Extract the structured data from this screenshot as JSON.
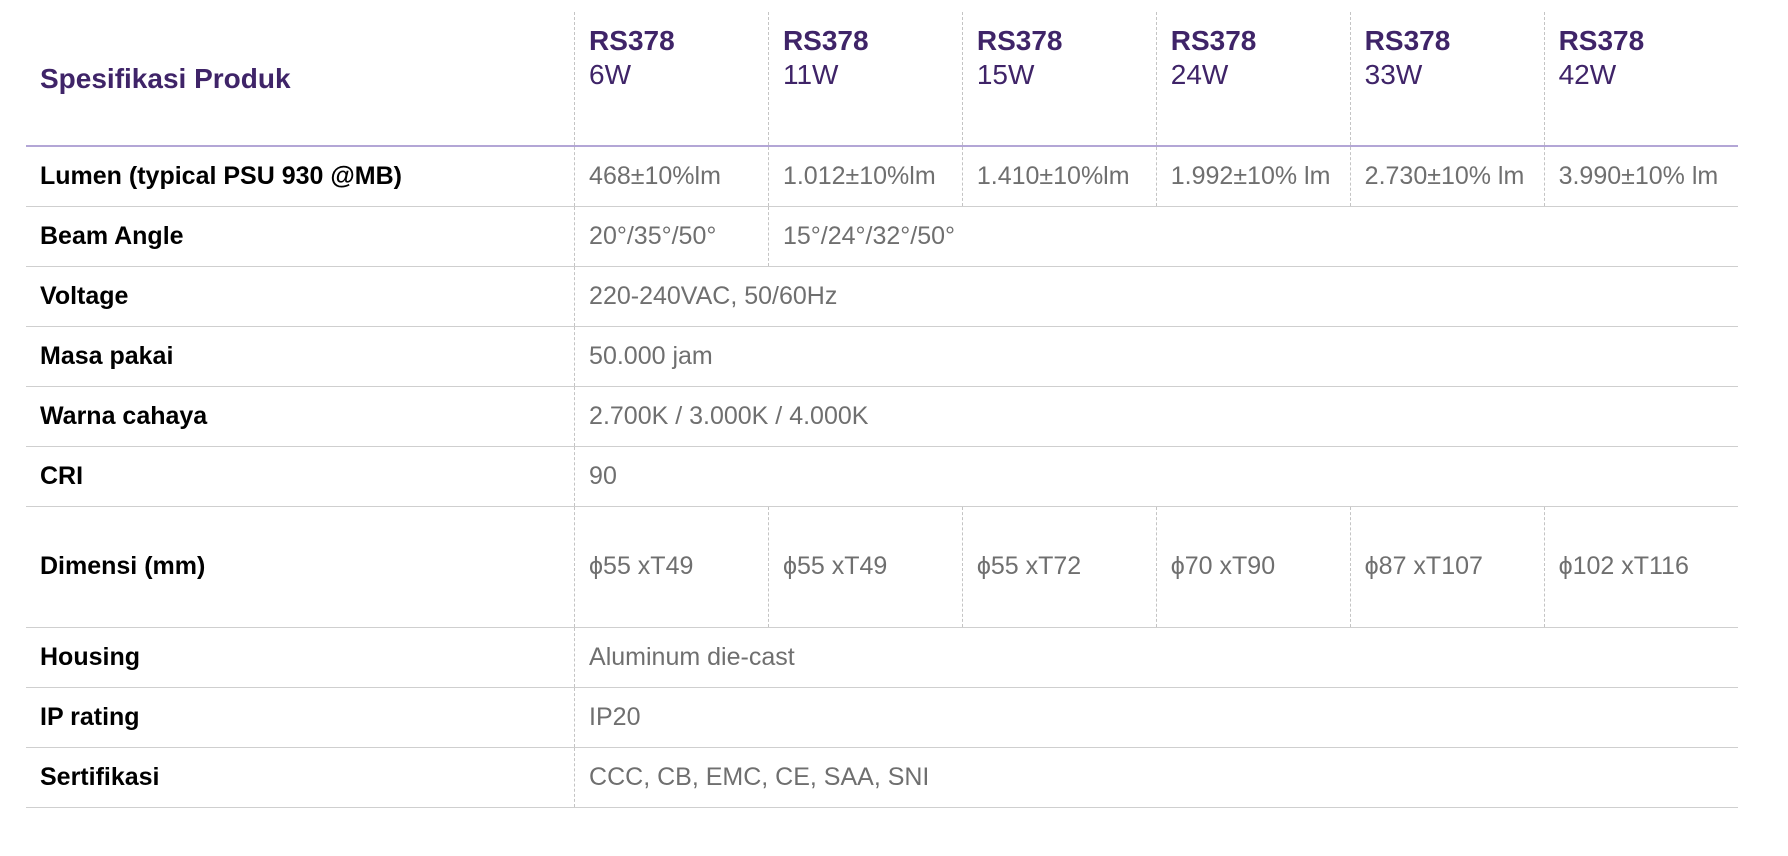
{
  "header": {
    "title": "Spesifikasi Produk",
    "models": [
      {
        "name": "RS378",
        "watt": "6W"
      },
      {
        "name": "RS378",
        "watt": "11W"
      },
      {
        "name": "RS378",
        "watt": "15W"
      },
      {
        "name": "RS378",
        "watt": "24W"
      },
      {
        "name": "RS378",
        "watt": "33W"
      },
      {
        "name": "RS378",
        "watt": "42W"
      }
    ]
  },
  "rows": {
    "lumen": {
      "label": "Lumen (typical PSU 930 @MB)",
      "values": [
        "468±10%lm",
        "1.012±10%lm",
        "1.410±10%lm",
        "1.992±10% lm",
        "2.730±10% lm",
        "3.990±10% lm"
      ]
    },
    "beam_angle": {
      "label": "Beam Angle",
      "values": [
        "20°/35°/50°",
        "15°/24°/32°/50°"
      ]
    },
    "voltage": {
      "label": "Voltage",
      "value": "220-240VAC, 50/60Hz"
    },
    "lifetime": {
      "label": "Masa pakai",
      "value": "50.000 jam"
    },
    "color": {
      "label": "Warna cahaya",
      "value": "2.700K / 3.000K / 4.000K"
    },
    "cri": {
      "label": "CRI",
      "value": "90"
    },
    "dimension": {
      "label": "Dimensi (mm)",
      "values": [
        "ϕ55 xT49",
        "ϕ55 xT49",
        "ϕ55 xT72",
        "ϕ70 xT90",
        "ϕ87 xT107",
        "ϕ102 xT116"
      ]
    },
    "housing": {
      "label": "Housing",
      "value": "Aluminum die-cast"
    },
    "ip": {
      "label": "IP rating",
      "value": "IP20"
    },
    "cert": {
      "label": "Sertifikasi",
      "value": "CCC, CB, EMC, CE, SAA, SNI"
    }
  },
  "colors": {
    "header_text": "#3f2468",
    "header_rule": "#b3a6d6",
    "label_text": "#000000",
    "value_text": "#6f6f6f",
    "row_rule": "#cfcfcf"
  }
}
